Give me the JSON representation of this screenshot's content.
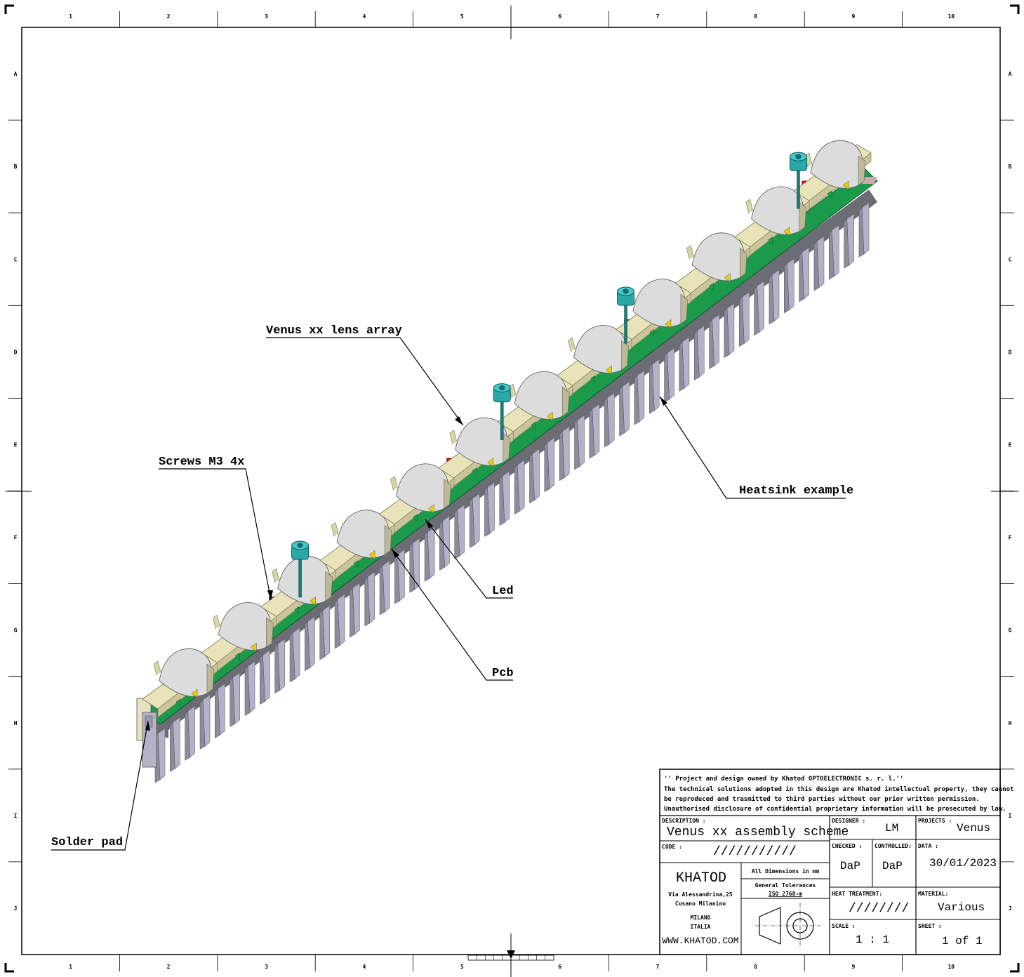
{
  "grid": {
    "columns": [
      "1",
      "2",
      "3",
      "4",
      "5",
      "6",
      "7",
      "8",
      "9",
      "10"
    ],
    "rows": [
      "A",
      "B",
      "C",
      "D",
      "E",
      "F",
      "G",
      "H",
      "I",
      "J"
    ]
  },
  "callouts": {
    "lens_array": "Venus xx lens array",
    "screws": "Screws M3 4x",
    "heatsink": "Heatsink example",
    "led": "Led",
    "pcb": "Pcb",
    "solder_pad": "Solder pad"
  },
  "title_block": {
    "notice": [
      "'' Project and design owned by Khatod OPTOELECTRONIC s. r. l.''",
      "The technical solutions adopted in this design are Khatod intellectual property, they cannot",
      "be reproduced and trasmitted to third parties without our prior written permission.",
      "Unauthorised disclosure of confidential proprietary information will be prosecuted by law."
    ],
    "description_label": "DESCRIPTION :",
    "description": "Venus xx assembly scheme",
    "designer_label": "DESIGNER :",
    "designer": "LM",
    "projects_label": "PROJECTS :",
    "projects": "Venus",
    "code_label": "CODE :",
    "code": "///////////",
    "checked_label": "CHECKED :",
    "checked": "DaP",
    "controlled_label": "CONTROLLED:",
    "controlled": "DaP",
    "data_label": "DATA :",
    "data": "30/01/2023",
    "company": "KHATOD",
    "address": [
      "Via Alessandrina,25",
      "Cusano Milanino",
      "MILANO",
      "ITALIA"
    ],
    "website": "WWW.KHATOD.COM",
    "dimensions_note": "All Dimensions in mm",
    "tolerances_label": "General Tolerances",
    "tolerances": "ISO 2768-m",
    "heat_treatment_label": "HEAT TREATMENT:",
    "heat_treatment": "////////",
    "material_label": "MATERIAL:",
    "material": "Various",
    "scale_label": "SCALE :",
    "scale": "1 : 1",
    "sheet_label": "SHEET :",
    "sheet": "1 of 1"
  },
  "colors": {
    "lens_body": "#e8e3b8",
    "lens_dome": "#dcdcdc",
    "pcb": "#1a9a4a",
    "heatsink_top": "#6c6c74",
    "heatsink_fin": "#8e8c9c",
    "heatsink_fin_light": "#b4b2c6",
    "screw": "#2aa8a8",
    "led": "#e8d000",
    "red_marker": "#cc1010"
  }
}
